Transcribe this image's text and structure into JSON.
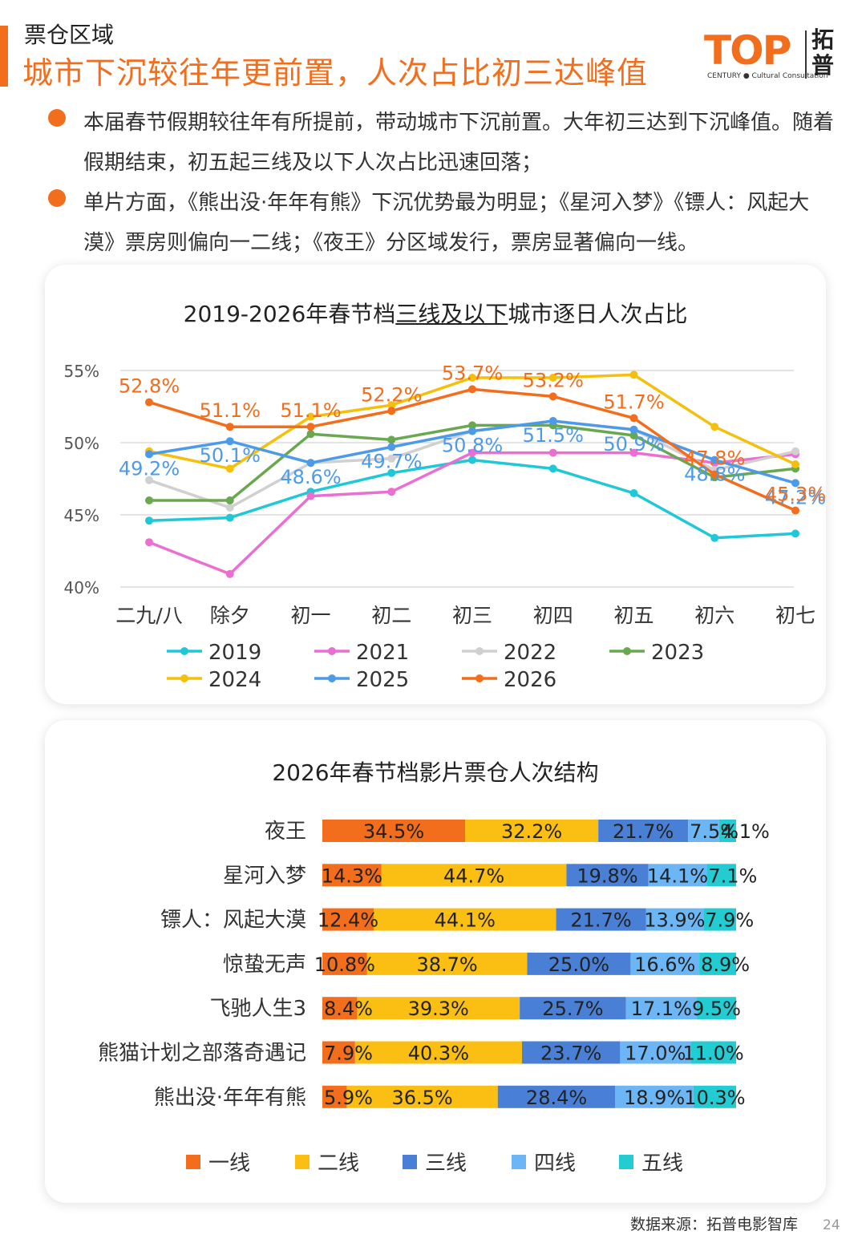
{
  "header": {
    "section": "票仓区域",
    "headline": "城市下沉较往年更前置，人次占比初三达峰值",
    "logo_word": "TOP",
    "logo_sub": "CENTURY ● Cultural Consultation",
    "logo_cn": "拓普"
  },
  "bullets": [
    "本届春节假期较往年有所提前，带动城市下沉前置。大年初三达到下沉峰值。随着假期结束，初五起三线及以下人次占比迅速回落；",
    "单片方面，《熊出没·年年有熊》下沉优势最为明显；《星河入梦》《镖人：风起大漠》票房则偏向一二线；《夜王》分区域发行，票房显著偏向一线。"
  ],
  "footer": {
    "source": "数据来源：拓普电影智库",
    "page": "24"
  },
  "chart_data": [
    {
      "type": "line",
      "title_pre": "2019-2026年春节档",
      "title_mid": "三线及以下",
      "title_post": "城市逐日人次占比",
      "categories": [
        "二九/八",
        "除夕",
        "初一",
        "初二",
        "初三",
        "初四",
        "初五",
        "初六",
        "初七"
      ],
      "ylim": [
        40,
        55
      ],
      "yticks": [
        "40%",
        "45%",
        "50%",
        "55%"
      ],
      "series": [
        {
          "name": "2019",
          "color": "#1ec8d6",
          "values": [
            44.6,
            44.8,
            46.6,
            47.9,
            48.8,
            48.2,
            46.5,
            43.4,
            43.7
          ],
          "labels": []
        },
        {
          "name": "2021",
          "color": "#ea6fd0",
          "values": [
            43.1,
            40.9,
            46.3,
            46.6,
            49.3,
            49.3,
            49.3,
            48.6,
            49.2
          ],
          "labels": []
        },
        {
          "name": "2022",
          "color": "#d0d0d0",
          "values": [
            47.4,
            45.5,
            48.6,
            48.9,
            50.8,
            51.5,
            50.9,
            48.1,
            49.4
          ],
          "labels": []
        },
        {
          "name": "2023",
          "color": "#6aa84f",
          "values": [
            46.0,
            46.0,
            50.6,
            50.2,
            51.2,
            51.2,
            50.5,
            47.6,
            48.2
          ],
          "labels": []
        },
        {
          "name": "2024",
          "color": "#f5c00c",
          "values": [
            49.4,
            48.2,
            51.8,
            52.6,
            54.5,
            54.5,
            54.7,
            51.1,
            48.5
          ],
          "labels": []
        },
        {
          "name": "2025",
          "color": "#4c9ae8",
          "values": [
            49.2,
            50.1,
            48.6,
            49.7,
            50.8,
            51.5,
            50.9,
            48.8,
            47.2
          ],
          "labels": [
            "49.2%",
            "50.1%",
            "48.6%",
            "49.7%",
            "50.8%",
            "51.5%",
            "50.9%",
            "48.8%",
            "47.2%"
          ]
        },
        {
          "name": "2026",
          "color": "#f26d1c",
          "values": [
            52.8,
            51.1,
            51.1,
            52.2,
            53.7,
            53.2,
            51.7,
            47.8,
            45.3
          ],
          "labels": [
            "52.8%",
            "51.1%",
            "51.1%",
            "52.2%",
            "53.7%",
            "53.2%",
            "51.7%",
            "47.8%",
            "45.3%"
          ]
        }
      ]
    },
    {
      "type": "bar",
      "stacked": true,
      "orientation": "horizontal",
      "title": "2026年春节档影片票仓人次结构",
      "categories": [
        "夜王",
        "星河入梦",
        "镖人：风起大漠",
        "惊蛰无声",
        "飞驰人生3",
        "熊猫计划之部落奇遇记",
        "熊出没·年年有熊"
      ],
      "series": [
        {
          "name": "一线",
          "color": "#f26d1c",
          "values": [
            34.5,
            14.3,
            12.4,
            10.8,
            8.4,
            7.9,
            5.9
          ]
        },
        {
          "name": "二线",
          "color": "#fbbf13",
          "values": [
            32.2,
            44.7,
            44.1,
            38.7,
            39.3,
            40.3,
            36.5
          ]
        },
        {
          "name": "三线",
          "color": "#4a7fd6",
          "values": [
            21.7,
            19.8,
            21.7,
            25.0,
            25.7,
            23.7,
            28.4
          ]
        },
        {
          "name": "四线",
          "color": "#6cb6f5",
          "values": [
            7.5,
            14.1,
            13.9,
            16.6,
            17.1,
            17.0,
            18.9
          ]
        },
        {
          "name": "五线",
          "color": "#22ccd2",
          "values": [
            4.1,
            7.1,
            7.9,
            8.9,
            9.5,
            11.0,
            10.3
          ]
        }
      ]
    }
  ]
}
